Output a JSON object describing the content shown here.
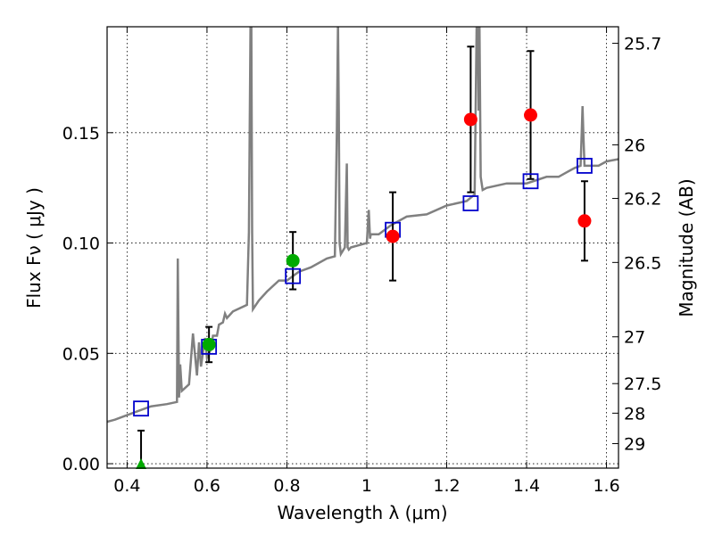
{
  "chart_data": {
    "type": "scatter",
    "xlabel": "Wavelength  λ (μm)",
    "ylabel": "Flux  Fν  ( μJy )",
    "ylabel_right": "Magnitude (AB)",
    "xlim": [
      0.35,
      1.63
    ],
    "ylim": [
      -0.002,
      0.198
    ],
    "x_ticks": [
      0.4,
      0.6,
      0.8,
      1.0,
      1.2,
      1.4,
      1.6
    ],
    "x_tick_labels": [
      "0.4",
      "0.6",
      "0.8",
      "1",
      "1.2",
      "1.4",
      "1.6"
    ],
    "y_ticks": [
      0.0,
      0.05,
      0.1,
      0.15
    ],
    "y_tick_labels": [
      "0.00",
      "0.05",
      "0.10",
      "0.15"
    ],
    "mag_ticks": [
      {
        "label": "25.7",
        "flux": 0.1905
      },
      {
        "label": "26",
        "flux": 0.1445
      },
      {
        "label": "26.2",
        "flux": 0.1202
      },
      {
        "label": "26.5",
        "flux": 0.0912
      },
      {
        "label": "27",
        "flux": 0.0575
      },
      {
        "label": "27.5",
        "flux": 0.0363
      },
      {
        "label": "28",
        "flux": 0.0229
      },
      {
        "label": "29",
        "flux": 0.0091
      }
    ],
    "grid": true,
    "colors": {
      "spectrum": "#808080",
      "model_points": "#0000cc",
      "green_points": "#00aa00",
      "red_points": "#ff0000",
      "errorbars": "#000000"
    },
    "series": [
      {
        "kind": "spectrum-line",
        "x": [
          0.35,
          0.37,
          0.4,
          0.43,
          0.46,
          0.5,
          0.525,
          0.527,
          0.53,
          0.533,
          0.537,
          0.555,
          0.565,
          0.575,
          0.58,
          0.585,
          0.595,
          0.6,
          0.61,
          0.615,
          0.625,
          0.63,
          0.64,
          0.645,
          0.65,
          0.665,
          0.7,
          0.705,
          0.709,
          0.711,
          0.713,
          0.715,
          0.73,
          0.75,
          0.78,
          0.8,
          0.83,
          0.86,
          0.9,
          0.92,
          0.925,
          0.928,
          0.93,
          0.932,
          0.935,
          0.945,
          0.95,
          0.952,
          0.955,
          0.96,
          1.0,
          1.005,
          1.008,
          1.01,
          1.03,
          1.06,
          1.1,
          1.15,
          1.2,
          1.25,
          1.27,
          1.275,
          1.278,
          1.28,
          1.282,
          1.285,
          1.29,
          1.3,
          1.35,
          1.4,
          1.45,
          1.48,
          1.5,
          1.52,
          1.535,
          1.538,
          1.54,
          1.542,
          1.545,
          1.55,
          1.58,
          1.6,
          1.63
        ],
        "y": [
          0.019,
          0.02,
          0.022,
          0.024,
          0.026,
          0.027,
          0.028,
          0.093,
          0.03,
          0.045,
          0.033,
          0.036,
          0.059,
          0.04,
          0.055,
          0.044,
          0.057,
          0.048,
          0.052,
          0.058,
          0.058,
          0.063,
          0.064,
          0.068,
          0.066,
          0.069,
          0.072,
          0.105,
          0.2,
          0.2,
          0.105,
          0.07,
          0.074,
          0.078,
          0.083,
          0.083,
          0.087,
          0.089,
          0.093,
          0.094,
          0.15,
          0.2,
          0.16,
          0.1,
          0.095,
          0.098,
          0.136,
          0.098,
          0.097,
          0.098,
          0.1,
          0.115,
          0.102,
          0.104,
          0.104,
          0.108,
          0.112,
          0.113,
          0.117,
          0.119,
          0.122,
          0.2,
          0.2,
          0.16,
          0.2,
          0.13,
          0.124,
          0.125,
          0.127,
          0.127,
          0.13,
          0.13,
          0.132,
          0.134,
          0.135,
          0.15,
          0.162,
          0.15,
          0.135,
          0.135,
          0.135,
          0.137,
          0.138
        ]
      },
      {
        "kind": "model-squares",
        "x": [
          0.435,
          0.605,
          0.815,
          1.065,
          1.26,
          1.41,
          1.545
        ],
        "y": [
          0.025,
          0.053,
          0.085,
          0.106,
          0.118,
          0.128,
          0.135
        ]
      },
      {
        "kind": "green-points",
        "x": [
          0.605,
          0.815
        ],
        "y": [
          0.054,
          0.092
        ],
        "yerr": [
          0.008,
          0.013
        ]
      },
      {
        "kind": "green-upper-limit",
        "x": [
          0.435
        ],
        "y": [
          0.0
        ],
        "yhigh": [
          0.015
        ]
      },
      {
        "kind": "red-points",
        "x": [
          1.065,
          1.26,
          1.41,
          1.545
        ],
        "y": [
          0.103,
          0.156,
          0.158,
          0.11
        ],
        "yerr": [
          0.02,
          0.033,
          0.029,
          0.018
        ]
      }
    ]
  }
}
